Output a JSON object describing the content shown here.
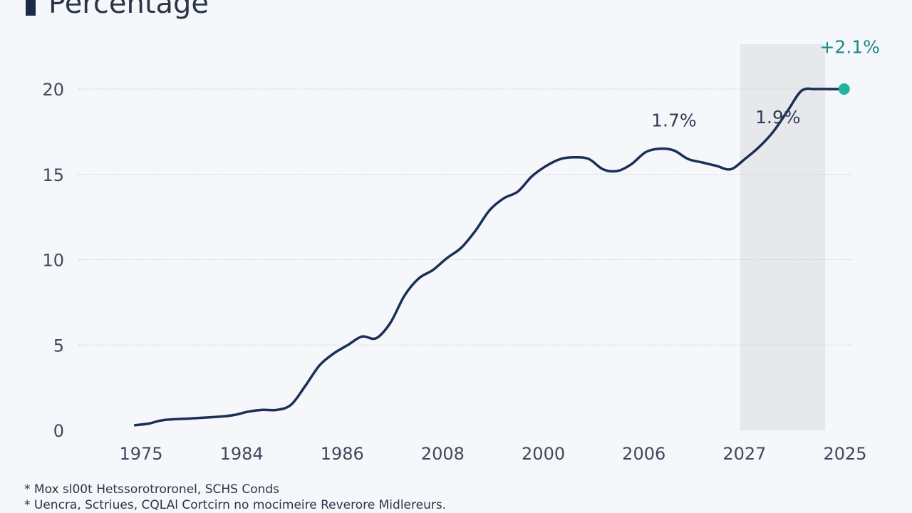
{
  "title": "Percentage",
  "colors": {
    "line": "#1b2f55",
    "highlight": "#1fb59f",
    "band": "#e6e8eb",
    "grid": "#c9cdd3",
    "title_bar": "#1a2a4a"
  },
  "footnotes": [
    "*  Mox sl00t Hetssorotroronel, SCHS Conds",
    "*  Uencra, Sctriues, CQLAl Cortcirn no mocimeire Reverore Midlereurs."
  ],
  "chart_data": {
    "type": "line",
    "title": "Percentage",
    "xlabel": "",
    "ylabel": "",
    "x_tick_labels": [
      "1975",
      "1984",
      "1986",
      "2008",
      "2000",
      "2006",
      "2027",
      "2025"
    ],
    "y_ticks": [
      0,
      5,
      10,
      15,
      20
    ],
    "ylim": [
      0,
      20
    ],
    "grid": true,
    "legend": "none",
    "shaded_region": {
      "from_x": 32,
      "to_x": 36.5
    },
    "series": [
      {
        "x": [
          0,
          0.75,
          1.5,
          3,
          4.5,
          5.25,
          6,
          6.75,
          7.5,
          8.25,
          9,
          9.75,
          10.5,
          11.25,
          12,
          12.75,
          13.5,
          14.25,
          15,
          15.75,
          16.5,
          17.25,
          18,
          18.75,
          19.5,
          20.25,
          21,
          21.75,
          22.5,
          23.25,
          24,
          24.75,
          25.5,
          26.25,
          27,
          27.75,
          28.5,
          29.25,
          30,
          30.75,
          31.5,
          32.25,
          33,
          33.75,
          34.5,
          35.25,
          36,
          36.75,
          37.5
        ],
        "values": [
          0.3,
          0.4,
          0.6,
          0.7,
          0.8,
          0.9,
          1.1,
          1.2,
          1.2,
          1.5,
          2.6,
          3.8,
          4.5,
          5.0,
          5.5,
          5.4,
          6.3,
          7.9,
          8.9,
          9.4,
          10.1,
          10.7,
          11.7,
          12.9,
          13.6,
          14.0,
          14.9,
          15.5,
          15.9,
          16.0,
          15.9,
          15.3,
          15.2,
          15.6,
          16.3,
          16.5,
          16.4,
          15.9,
          15.7,
          15.5,
          15.3,
          15.9,
          16.6,
          17.5,
          18.7,
          19.9,
          20.0,
          20.0,
          20.0
        ],
        "end_point": {
          "x": 37.5,
          "y": 20.0
        }
      }
    ],
    "annotations": [
      {
        "text": "1.7%",
        "x": 28.5,
        "y": 17.8,
        "highlight": false
      },
      {
        "text": "1.9%",
        "x": 34.0,
        "y": 18.0,
        "highlight": false
      },
      {
        "text": "+2.1%",
        "x": 37.8,
        "y": 22.1,
        "highlight": true
      }
    ]
  }
}
